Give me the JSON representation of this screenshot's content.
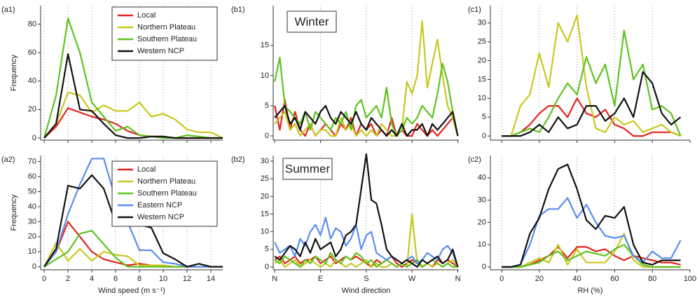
{
  "chart_data": [
    {
      "type": "line",
      "panel": "(a1)",
      "ylabel": "Frequency",
      "legend": true,
      "x": [
        0,
        1,
        2,
        3,
        4,
        5,
        6,
        7,
        8,
        9,
        10,
        11,
        12,
        13,
        14,
        15
      ],
      "series": [
        {
          "name": "Local",
          "color": "#e42320",
          "values": [
            0,
            8,
            21,
            18,
            15,
            13,
            10,
            5,
            2,
            1,
            1,
            0,
            0,
            0,
            0,
            0
          ]
        },
        {
          "name": "Northern Plateau",
          "color": "#c9c81f",
          "values": [
            0,
            10,
            32,
            30,
            18,
            23,
            19,
            19,
            25,
            15,
            17,
            13,
            6,
            4,
            4,
            0
          ]
        },
        {
          "name": "Southern Plateau",
          "color": "#5fc31f",
          "values": [
            0,
            30,
            84,
            60,
            25,
            15,
            5,
            8,
            2,
            1,
            0,
            0,
            2,
            1,
            0,
            0
          ]
        },
        {
          "name": "Western NCP",
          "color": "#111111",
          "values": [
            0,
            10,
            59,
            20,
            19,
            10,
            2,
            0,
            0,
            1,
            1,
            0,
            0,
            0,
            0,
            0
          ]
        }
      ],
      "xlim": [
        -0.3,
        15
      ],
      "ylim": [
        -1.5,
        93
      ],
      "yticks": [
        0,
        20,
        40,
        60,
        80
      ]
    },
    {
      "type": "line",
      "panel": "(a2)",
      "ylabel": "Frequency",
      "xlabel": "Wind speed (m s⁻¹)",
      "legend": true,
      "x": [
        0,
        1,
        2,
        3,
        4,
        5,
        6,
        7,
        8,
        9,
        10,
        11,
        12,
        13,
        14,
        15
      ],
      "series": [
        {
          "name": "Local",
          "color": "#e42320",
          "values": [
            0,
            10,
            30,
            20,
            10,
            5,
            3,
            1,
            2,
            1,
            0,
            0,
            0,
            0,
            0,
            0
          ]
        },
        {
          "name": "Northern Plateau",
          "color": "#c9c81f",
          "values": [
            0,
            16,
            4,
            12,
            4,
            10,
            8,
            7,
            1,
            1,
            1,
            0,
            0,
            0,
            0,
            0
          ]
        },
        {
          "name": "Southern Plateau",
          "color": "#5fc31f",
          "values": [
            0,
            5,
            10,
            22,
            24,
            15,
            6,
            0,
            0,
            0,
            0,
            0,
            0,
            0,
            0,
            0
          ]
        },
        {
          "name": "Eastern NCP",
          "color": "#5b8def",
          "values": [
            0,
            10,
            35,
            55,
            72,
            72,
            45,
            30,
            11,
            11,
            3,
            2,
            0,
            0,
            0,
            0
          ]
        },
        {
          "name": "Western NCP",
          "color": "#111111",
          "values": [
            0,
            12,
            54,
            52,
            61,
            52,
            29,
            35,
            28,
            26,
            9,
            5,
            0,
            2,
            0,
            0
          ]
        }
      ],
      "xlim": [
        -0.3,
        15
      ],
      "ylim": [
        -2,
        74
      ],
      "xticks": [
        0,
        2,
        4,
        6,
        8,
        10,
        12,
        14
      ],
      "yticks": [
        0,
        10,
        20,
        30,
        40,
        50,
        60,
        70
      ]
    },
    {
      "type": "line",
      "panel": "(b1)",
      "annotation": "Winter",
      "x": [
        0,
        10,
        20,
        30,
        40,
        50,
        60,
        70,
        80,
        90,
        100,
        110,
        120,
        130,
        140,
        150,
        160,
        170,
        180,
        190,
        200,
        210,
        220,
        230,
        240,
        250,
        260,
        270,
        280,
        290,
        300,
        310,
        320,
        330,
        340,
        350,
        360
      ],
      "series": [
        {
          "name": "Local",
          "color": "#e42320",
          "values": [
            5,
            1,
            6,
            1,
            4,
            1,
            0,
            2,
            0,
            1,
            2,
            1,
            0,
            2,
            1,
            3,
            0,
            2,
            1,
            2,
            0,
            1,
            0,
            3,
            0,
            1,
            0,
            0,
            2,
            1,
            0,
            1,
            0,
            1,
            2,
            3,
            0
          ]
        },
        {
          "name": "Northern Plateau",
          "color": "#c9c81f",
          "values": [
            2,
            3,
            4,
            1,
            2,
            0,
            1,
            2,
            0,
            1,
            1,
            0,
            0,
            3,
            1,
            2,
            0,
            1,
            0,
            1,
            0,
            2,
            1,
            0,
            0,
            1,
            9,
            7,
            10,
            19,
            8,
            12,
            16,
            10,
            5,
            3,
            0
          ]
        },
        {
          "name": "Southern Plateau",
          "color": "#5fc31f",
          "values": [
            9,
            13,
            5,
            4,
            3,
            2,
            4,
            1,
            4,
            3,
            2,
            1,
            3,
            2,
            4,
            1,
            5,
            6,
            3,
            4,
            5,
            3,
            8,
            2,
            0,
            1,
            3,
            2,
            3,
            5,
            4,
            3,
            7,
            12,
            9,
            4,
            0
          ]
        },
        {
          "name": "Western NCP",
          "color": "#111111",
          "values": [
            3,
            4,
            5,
            2,
            3,
            1,
            4,
            3,
            2,
            4,
            5,
            3,
            2,
            4,
            3,
            2,
            4,
            2,
            1,
            3,
            2,
            1,
            0,
            1,
            0,
            2,
            0,
            1,
            1,
            2,
            0,
            2,
            1,
            2,
            3,
            4,
            0
          ]
        }
      ],
      "xlim": [
        -3,
        362
      ],
      "ylim": [
        -0.7,
        21.6
      ],
      "yticks": [
        0,
        5,
        10,
        15
      ]
    },
    {
      "type": "line",
      "panel": "(b2)",
      "annotation": "Summer",
      "xlabel": "Wind direction",
      "x": [
        0,
        10,
        20,
        30,
        40,
        50,
        60,
        70,
        80,
        90,
        100,
        110,
        120,
        130,
        140,
        150,
        160,
        170,
        180,
        190,
        200,
        210,
        220,
        230,
        240,
        250,
        260,
        270,
        280,
        290,
        300,
        310,
        320,
        330,
        340,
        350,
        360
      ],
      "series": [
        {
          "name": "Local",
          "color": "#e42320",
          "values": [
            2,
            3,
            1,
            2,
            3,
            1,
            2,
            2,
            3,
            1,
            2,
            3,
            1,
            2,
            3,
            2,
            3,
            2,
            1,
            0,
            2,
            1,
            2,
            3,
            1,
            0,
            1,
            2,
            1,
            0,
            1,
            0,
            2,
            1,
            2,
            1,
            0
          ]
        },
        {
          "name": "Northern Plateau",
          "color": "#c9c81f",
          "values": [
            1,
            2,
            0,
            1,
            2,
            0,
            1,
            2,
            1,
            0,
            1,
            0,
            2,
            1,
            0,
            1,
            0,
            1,
            2,
            0,
            1,
            0,
            0,
            1,
            0,
            1,
            0,
            15,
            1,
            0,
            1,
            0,
            1,
            0,
            1,
            2,
            0
          ]
        },
        {
          "name": "Southern Plateau",
          "color": "#5fc31f",
          "values": [
            2,
            1,
            3,
            2,
            1,
            0,
            2,
            1,
            3,
            2,
            1,
            4,
            2,
            1,
            3,
            2,
            4,
            3,
            1,
            2,
            0,
            1,
            2,
            1,
            0,
            1,
            0,
            1,
            2,
            0,
            1,
            2,
            1,
            0,
            1,
            0,
            0
          ]
        },
        {
          "name": "Eastern NCP",
          "color": "#5b8def",
          "values": [
            7,
            4,
            5,
            6,
            3,
            8,
            6,
            10,
            12,
            9,
            14,
            8,
            11,
            10,
            6,
            8,
            12,
            5,
            9,
            10,
            4,
            3,
            2,
            3,
            2,
            1,
            2,
            3,
            1,
            2,
            4,
            3,
            2,
            5,
            6,
            4,
            0
          ]
        },
        {
          "name": "Western NCP",
          "color": "#111111",
          "values": [
            3,
            2,
            4,
            6,
            5,
            3,
            7,
            4,
            8,
            5,
            6,
            7,
            3,
            5,
            9,
            10,
            12,
            22,
            32,
            19,
            18,
            12,
            5,
            3,
            2,
            1,
            2,
            1,
            0,
            2,
            1,
            2,
            3,
            1,
            2,
            5,
            0
          ]
        }
      ],
      "xlim": [
        -3,
        362
      ],
      "ylim": [
        -0.8,
        31.6
      ],
      "xticks": [
        {
          "value": 0,
          "label": "N"
        },
        {
          "value": 90,
          "label": "E"
        },
        {
          "value": 180,
          "label": "S"
        },
        {
          "value": 270,
          "label": "W"
        },
        {
          "value": 360,
          "label": "N"
        }
      ],
      "yticks": [
        0,
        5,
        10,
        15,
        20,
        25,
        30
      ]
    },
    {
      "type": "line",
      "panel": "(c1)",
      "x": [
        0,
        5,
        10,
        15,
        20,
        25,
        30,
        35,
        40,
        45,
        50,
        55,
        60,
        65,
        70,
        75,
        80,
        85,
        90,
        95
      ],
      "series": [
        {
          "name": "Local",
          "color": "#e42320",
          "values": [
            0,
            0,
            1,
            3,
            6,
            8,
            8,
            5,
            10,
            6,
            5,
            7,
            3,
            2,
            0,
            0,
            1,
            1,
            1,
            0
          ]
        },
        {
          "name": "Northern Plateau",
          "color": "#c9c81f",
          "values": [
            0,
            0,
            8,
            11,
            22,
            13,
            30,
            25,
            32,
            13,
            2,
            1,
            5,
            3,
            4,
            1,
            2,
            3,
            1,
            0
          ]
        },
        {
          "name": "Southern Plateau",
          "color": "#5fc31f",
          "values": [
            0,
            0,
            1,
            2,
            1,
            5,
            10,
            14,
            11,
            21,
            14,
            19,
            8,
            28,
            15,
            19,
            7,
            8,
            6,
            0
          ]
        },
        {
          "name": "Western NCP",
          "color": "#111111",
          "values": [
            0,
            0,
            0,
            1,
            3,
            1,
            5,
            2,
            3,
            8,
            8,
            4,
            6,
            10,
            5,
            17,
            14,
            6,
            3,
            5
          ]
        }
      ],
      "xlim": [
        -6,
        100
      ],
      "ylim": [
        -1.1,
        34.6
      ],
      "yticks": [
        0,
        5,
        10,
        15,
        20,
        25,
        30
      ]
    },
    {
      "type": "line",
      "panel": "(c2)",
      "xlabel": "RH (%)",
      "x": [
        0,
        5,
        10,
        15,
        20,
        25,
        30,
        35,
        40,
        45,
        50,
        55,
        60,
        65,
        70,
        75,
        80,
        85,
        90,
        95
      ],
      "series": [
        {
          "name": "Local",
          "color": "#e42320",
          "values": [
            0,
            0,
            0,
            1,
            3,
            5,
            9,
            4,
            9,
            9,
            7,
            8,
            5,
            3,
            5,
            4,
            3,
            2,
            2,
            1
          ]
        },
        {
          "name": "Northern Plateau",
          "color": "#c9c81f",
          "values": [
            0,
            0,
            0,
            2,
            4,
            2,
            10,
            1,
            8,
            2,
            2,
            2,
            7,
            15,
            3,
            0,
            0,
            0,
            0,
            0
          ]
        },
        {
          "name": "Southern Plateau",
          "color": "#5fc31f",
          "values": [
            0,
            0,
            0,
            1,
            2,
            5,
            7,
            3,
            5,
            7,
            6,
            5,
            8,
            10,
            5,
            1,
            0,
            0,
            0,
            0
          ]
        },
        {
          "name": "Eastern NCP",
          "color": "#5b8def",
          "values": [
            0,
            0,
            1,
            10,
            23,
            26,
            26,
            31,
            22,
            28,
            20,
            14,
            13,
            14,
            5,
            2,
            7,
            4,
            4,
            12
          ]
        },
        {
          "name": "Western NCP",
          "color": "#111111",
          "values": [
            0,
            0,
            1,
            15,
            22,
            35,
            44,
            46,
            35,
            21,
            17,
            23,
            22,
            27,
            10,
            2,
            1,
            3,
            3,
            3
          ]
        }
      ],
      "xlim": [
        -6,
        100
      ],
      "ylim": [
        -1.25,
        50
      ],
      "xticks": [
        0,
        20,
        40,
        60,
        80,
        100
      ],
      "yticks": [
        0,
        10,
        20,
        30,
        40
      ]
    }
  ]
}
